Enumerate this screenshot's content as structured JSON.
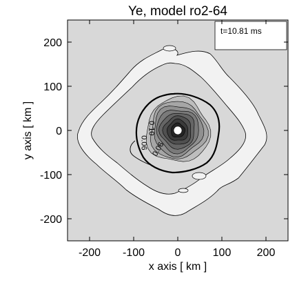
{
  "chart_data": {
    "type": "contour",
    "title": "Ye, model ro2-64",
    "xlabel": "x axis [ km ]",
    "ylabel": "y axis [ km ]",
    "xlim": [
      -250,
      250
    ],
    "ylim": [
      -250,
      250
    ],
    "xticks": [
      -200,
      -100,
      0,
      100,
      200
    ],
    "yticks": [
      -200,
      -100,
      0,
      100,
      200
    ],
    "tick_labels_x": [
      "-200",
      "-100",
      "0",
      "100",
      "200"
    ],
    "tick_labels_y": [
      "-200",
      "-100",
      "0",
      "100",
      "200"
    ],
    "time_label": "t=10.81  ms",
    "contour_labels": [
      {
        "text": "0.10",
        "x": -65,
        "y": 5,
        "rotation_deg": 90
      },
      {
        "text": "0.06",
        "x": -82,
        "y": -28,
        "rotation_deg": 90
      },
      {
        "text": "0.06",
        "x": -40,
        "y": -45,
        "rotation_deg": -60
      }
    ],
    "background_color": "#d8d8d8",
    "ring_color": "#f2f2f2",
    "core_colors": [
      "#bdbdbd",
      "#a6a6a6",
      "#909090",
      "#7a7a7a",
      "#656565",
      "#505050",
      "#3a3a3a",
      "#252525"
    ],
    "grid": false
  }
}
